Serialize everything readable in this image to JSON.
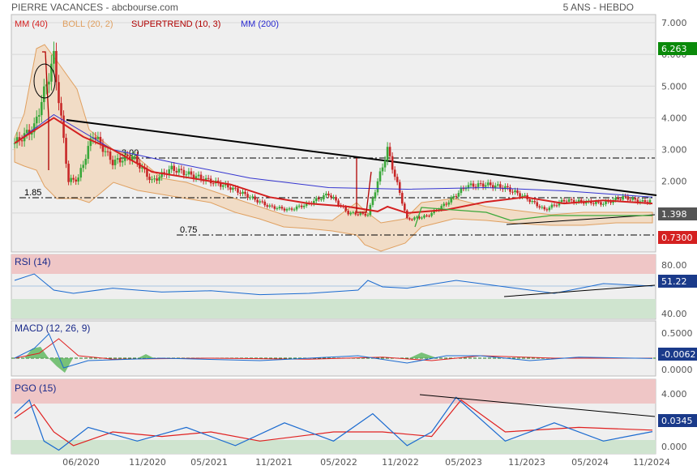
{
  "header": {
    "left": "PIERRE VACANCES - abcbourse.com",
    "right": "5 ANS - HEBDO"
  },
  "legend": [
    {
      "label": "MM (40)",
      "color": "#d42020"
    },
    {
      "label": "BOLL (20, 2)",
      "color": "#e0a060"
    },
    {
      "label": "SUPERTREND (10, 3)",
      "color": "#b00000"
    },
    {
      "label": "MM (200)",
      "color": "#2a2ad0"
    }
  ],
  "x_labels": [
    "06/2020",
    "11/2020",
    "05/2021",
    "11/2021",
    "05/2022",
    "11/2022",
    "05/2023",
    "11/2023",
    "05/2024",
    "11/2024"
  ],
  "colors": {
    "up": "#3aa83a",
    "down": "#c82828",
    "ma40": "#d42020",
    "ma200": "#3434d0",
    "boll_fill": "#f1dcc6",
    "boll_line": "#e0a060",
    "supertrend_up": "#3aa83a",
    "supertrend_down": "#b00000",
    "overbought": "#efc6c6",
    "oversold": "#cfe4cf",
    "ind_main": "#1a6ad0",
    "ind_signal": "#e02020",
    "tag_price": "#555555",
    "tag_high": "#0a8a0a",
    "tag_low": "#d42020",
    "tag_ind": "#1a3a8a"
  },
  "chart_data": [
    {
      "type": "candlestick",
      "title": "PIERRE VACANCES",
      "ylim": [
        0,
        7
      ],
      "y_ticks": [
        "1.000",
        "2.000",
        "3.000",
        "4.000",
        "5.000",
        "6.000",
        "7.000"
      ],
      "last_price": "1.398",
      "high_tag": "6.263",
      "low_tag": "0.7300",
      "annotations": [
        {
          "text": "3.00",
          "value": 3.0
        },
        {
          "text": "1.85",
          "value": 1.85
        },
        {
          "text": "0.75",
          "value": 0.75
        }
      ],
      "series": [
        {
          "name": "Close",
          "x": [
            0,
            8,
            16,
            22,
            26,
            32,
            40,
            48,
            56,
            64,
            72,
            80,
            88,
            96,
            104,
            112,
            120,
            128,
            136,
            144,
            152,
            160,
            168,
            176,
            184,
            192,
            200,
            208,
            216,
            224,
            232,
            240,
            248,
            256,
            260
          ],
          "values": [
            3.2,
            3.7,
            5.9,
            2.0,
            2.1,
            3.5,
            2.6,
            2.8,
            2.0,
            2.4,
            2.2,
            2.0,
            1.8,
            1.5,
            1.2,
            1.1,
            1.3,
            1.6,
            1.0,
            0.95,
            3.0,
            0.8,
            0.9,
            1.3,
            1.85,
            1.9,
            1.8,
            1.5,
            1.1,
            1.4,
            1.35,
            1.3,
            1.5,
            1.35,
            1.398
          ]
        },
        {
          "name": "MM (40)",
          "x": [
            0,
            16,
            28,
            40,
            56,
            72,
            88,
            104,
            120,
            136,
            148,
            152,
            160,
            176,
            192,
            208,
            224,
            240,
            260
          ],
          "values": [
            3.2,
            4.0,
            3.4,
            3.0,
            2.3,
            2.1,
            1.9,
            1.5,
            1.3,
            1.2,
            1.05,
            1.2,
            1.0,
            1.1,
            1.35,
            1.5,
            1.3,
            1.4,
            1.3
          ]
        },
        {
          "name": "MM (200)",
          "x": [
            0,
            16,
            40,
            64,
            96,
            128,
            160,
            192,
            224,
            260
          ],
          "values": [
            3.2,
            4.1,
            3.0,
            2.6,
            2.1,
            1.8,
            1.75,
            1.8,
            1.7,
            1.5
          ]
        }
      ]
    },
    {
      "type": "line",
      "title": "RSI (14)",
      "ylim": [
        0,
        100
      ],
      "y_ticks": [
        "40.00",
        "80.00"
      ],
      "last_value": "51.22",
      "series": [
        {
          "name": "RSI (14)",
          "x": [
            0,
            8,
            16,
            24,
            40,
            60,
            80,
            100,
            120,
            140,
            144,
            150,
            160,
            180,
            200,
            220,
            240,
            260
          ],
          "values": [
            60,
            70,
            45,
            40,
            48,
            42,
            44,
            38,
            40,
            45,
            60,
            50,
            48,
            60,
            50,
            40,
            55,
            51.22
          ]
        }
      ]
    },
    {
      "type": "line",
      "title": "MACD (12, 26, 9)",
      "ylim": [
        -0.3,
        0.6
      ],
      "y_ticks": [
        "0.5000",
        "0.0000"
      ],
      "last_value": "-0.0062",
      "series": [
        {
          "name": "MACD",
          "x": [
            0,
            8,
            14,
            20,
            30,
            60,
            100,
            140,
            160,
            176,
            190,
            210,
            230,
            260
          ],
          "values": [
            0,
            0.2,
            0.5,
            -0.2,
            -0.05,
            0,
            -0.05,
            0.05,
            -0.1,
            0.05,
            0.05,
            -0.05,
            0.02,
            -0.0062
          ]
        },
        {
          "name": "Signal",
          "x": [
            0,
            10,
            18,
            26,
            40,
            80,
            120,
            150,
            170,
            190,
            220,
            260
          ],
          "values": [
            0,
            0.1,
            0.4,
            0.05,
            -0.02,
            0,
            -0.02,
            0.02,
            -0.05,
            0.05,
            0,
            0
          ]
        }
      ]
    },
    {
      "type": "line",
      "title": "PGO (15)",
      "ylim": [
        -3.5,
        5
      ],
      "y_ticks": [
        "4.000",
        "0.000"
      ],
      "last_value": "0.0345",
      "series": [
        {
          "name": "PGO",
          "x": [
            0,
            6,
            12,
            18,
            30,
            50,
            70,
            90,
            110,
            130,
            146,
            160,
            170,
            180,
            200,
            220,
            240,
            260
          ],
          "values": [
            2,
            3.5,
            -1,
            -2,
            0.5,
            -1,
            0.5,
            -1.5,
            1,
            -1,
            2,
            -1.5,
            0,
            3.8,
            -1,
            1,
            -1,
            0.0345
          ]
        },
        {
          "name": "Signal",
          "x": [
            0,
            8,
            16,
            24,
            40,
            60,
            80,
            100,
            130,
            150,
            170,
            182,
            200,
            230,
            260
          ],
          "values": [
            1.5,
            3,
            0,
            -1.5,
            0,
            -0.5,
            0,
            -1,
            0,
            0,
            -0.5,
            3.5,
            0,
            0.5,
            0.2
          ]
        }
      ]
    }
  ]
}
